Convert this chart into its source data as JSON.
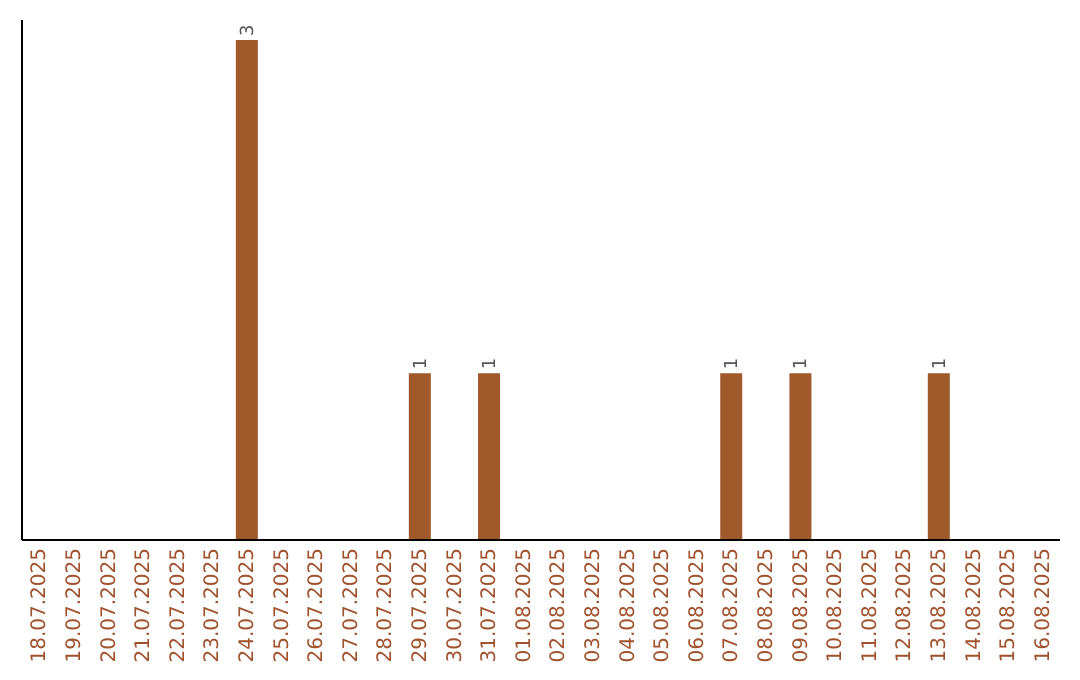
{
  "chart_data": {
    "type": "bar",
    "categories": [
      "18.07.2025",
      "19.07.2025",
      "20.07.2025",
      "21.07.2025",
      "22.07.2025",
      "23.07.2025",
      "24.07.2025",
      "25.07.2025",
      "26.07.2025",
      "27.07.2025",
      "28.07.2025",
      "29.07.2025",
      "30.07.2025",
      "31.07.2025",
      "01.08.2025",
      "02.08.2025",
      "03.08.2025",
      "04.08.2025",
      "05.08.2025",
      "06.08.2025",
      "07.08.2025",
      "08.08.2025",
      "09.08.2025",
      "10.08.2025",
      "11.08.2025",
      "12.08.2025",
      "13.08.2025",
      "14.08.2025",
      "15.08.2025",
      "16.08.2025"
    ],
    "values": [
      0,
      0,
      0,
      0,
      0,
      0,
      3,
      0,
      0,
      0,
      0,
      1,
      0,
      1,
      0,
      0,
      0,
      0,
      0,
      0,
      1,
      0,
      1,
      0,
      0,
      0,
      1,
      0,
      0,
      0
    ],
    "value_labels": [
      null,
      null,
      null,
      null,
      null,
      null,
      "3",
      null,
      null,
      null,
      null,
      "1",
      null,
      "1",
      null,
      null,
      null,
      null,
      null,
      null,
      "1",
      null,
      "1",
      null,
      null,
      null,
      "1",
      null,
      null,
      null
    ],
    "color": "#a0592a",
    "tick_labels": "x"
  }
}
